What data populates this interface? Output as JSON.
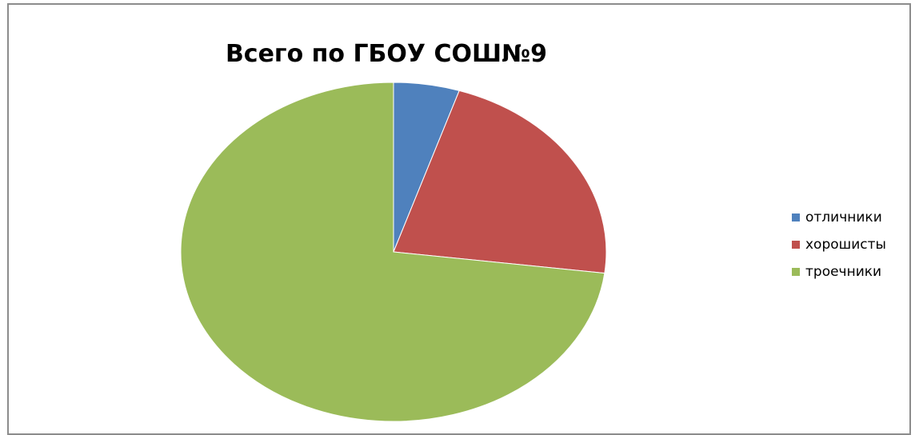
{
  "chart_data": {
    "type": "pie",
    "title": "Всего по ГБОУ СОШ№9",
    "categories": [
      "отличники",
      "хорошисты",
      "троечники"
    ],
    "values": [
      5,
      22,
      73
    ],
    "colors": [
      "#4f81bd",
      "#c0504d",
      "#9bbb59"
    ],
    "legend_position": "right"
  }
}
